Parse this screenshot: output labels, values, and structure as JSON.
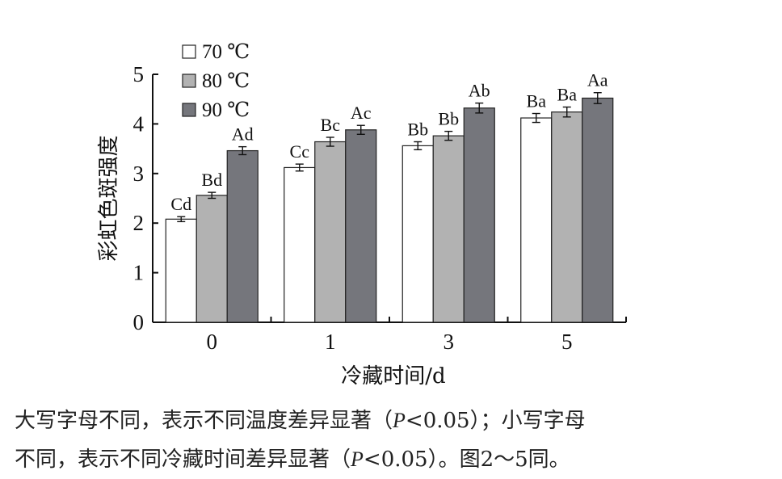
{
  "chart_data": {
    "type": "bar",
    "categories": [
      "0",
      "1",
      "3",
      "5"
    ],
    "series": [
      {
        "name": "70 ℃",
        "color": "#ffffff",
        "values": [
          2.08,
          3.12,
          3.56,
          4.12
        ],
        "errors": [
          0.05,
          0.07,
          0.08,
          0.09
        ],
        "labels": [
          "Cd",
          "Cc",
          "Bb",
          "Ba"
        ]
      },
      {
        "name": "80 ℃",
        "color": "#b2b2b2",
        "values": [
          2.56,
          3.64,
          3.76,
          4.24
        ],
        "errors": [
          0.06,
          0.09,
          0.09,
          0.1
        ],
        "labels": [
          "Bd",
          "Bc",
          "Bb",
          "Ba"
        ]
      },
      {
        "name": "90 ℃",
        "color": "#75767c",
        "values": [
          3.46,
          3.88,
          4.32,
          4.52
        ],
        "errors": [
          0.08,
          0.09,
          0.1,
          0.11
        ],
        "labels": [
          "Ad",
          "Ac",
          "Ab",
          "Aa"
        ]
      }
    ],
    "xlabel": "冷藏时间/d",
    "ylabel": "彩虹色斑强度",
    "ylim": [
      0,
      5
    ],
    "yticks": [
      "0",
      "1",
      "2",
      "3",
      "4",
      "5"
    ],
    "grid": false,
    "legend": "top-left"
  },
  "caption": {
    "line1_a": "大写字母不同，表示不同温度差异显著（",
    "line1_p": "P",
    "line1_b": "<0.05）；小写字母",
    "line2_a": "不同，表示不同冷藏时间差异显著（",
    "line2_p": "P",
    "line2_b": "<0.05）。图2～5同。"
  }
}
